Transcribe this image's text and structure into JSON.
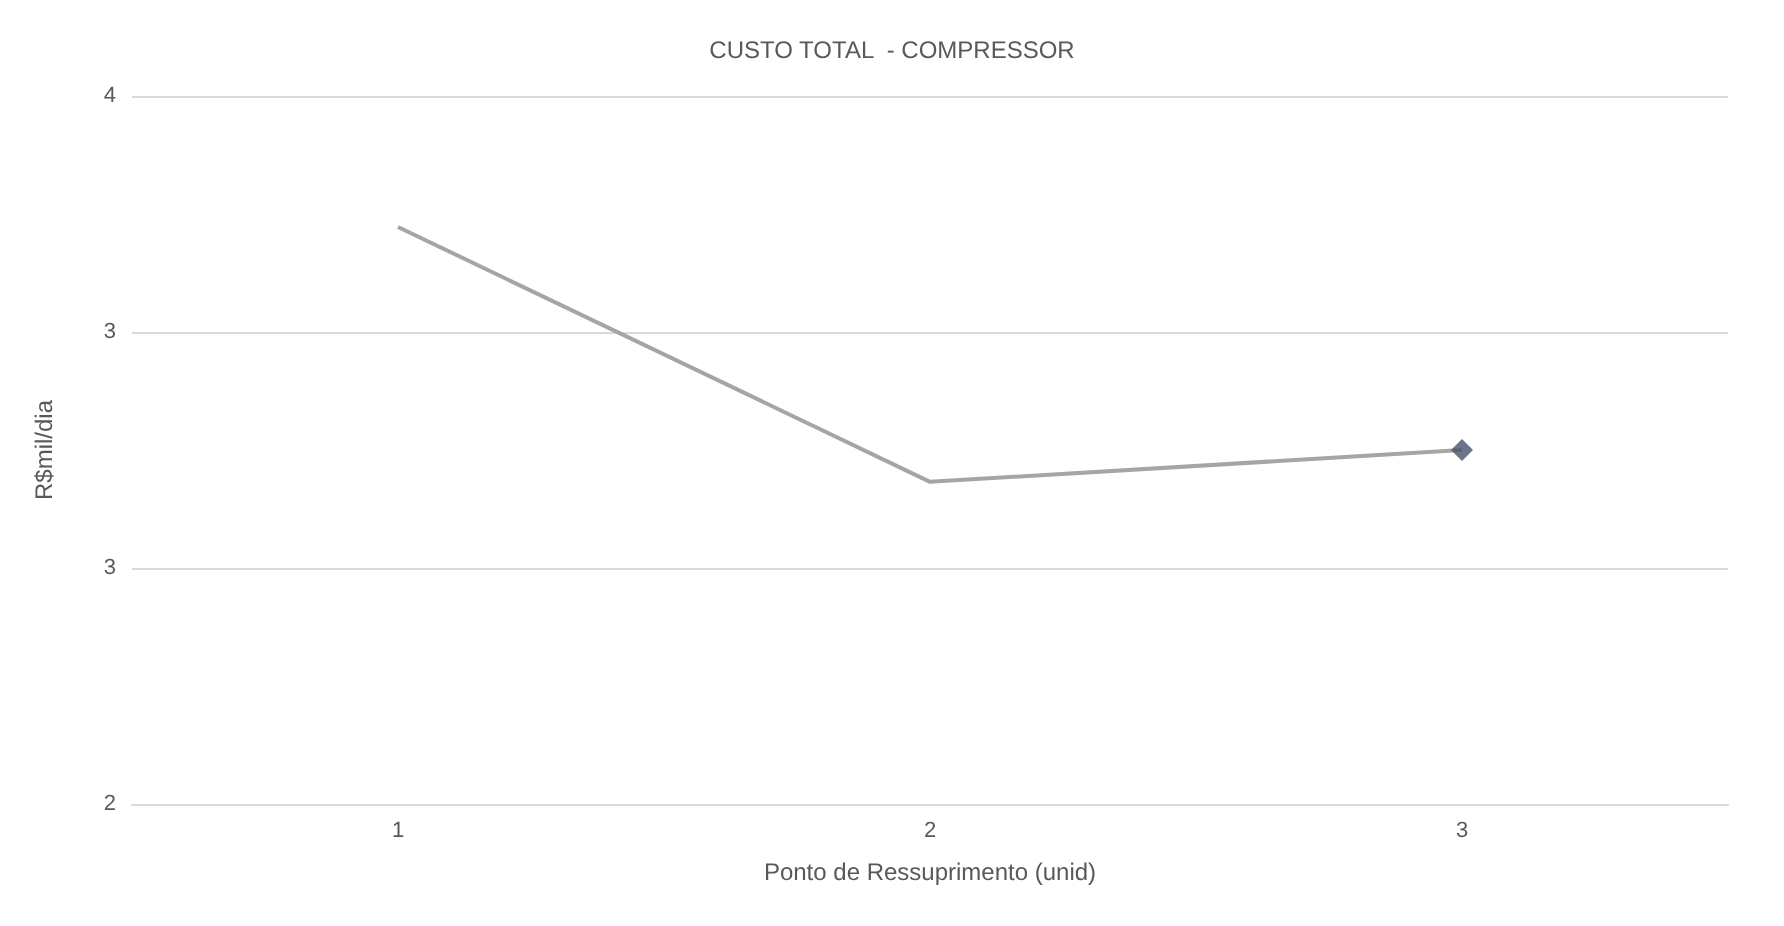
{
  "chart_data": {
    "type": "line",
    "title": "CUSTO TOTAL  - COMPRESSOR",
    "xlabel": "Ponto de Ressuprimento (unid)",
    "ylabel": "R$mil/dia",
    "categories": [
      "1",
      "2",
      "3"
    ],
    "series": [
      {
        "color": "#a5a5a5",
        "values": [
          3.63,
          2.91,
          3.0
        ],
        "marker": "none"
      },
      {
        "type": "scatter",
        "x": [
          "3"
        ],
        "color": "#44546a",
        "values": [
          3.0
        ],
        "marker": "diamond"
      }
    ],
    "ylim": [
      2,
      4
    ],
    "yticks": [
      2,
      {
        "value": 2.6667,
        "label": "3"
      },
      {
        "value": 3.3333,
        "label": "3"
      },
      4
    ],
    "grid": "y"
  }
}
